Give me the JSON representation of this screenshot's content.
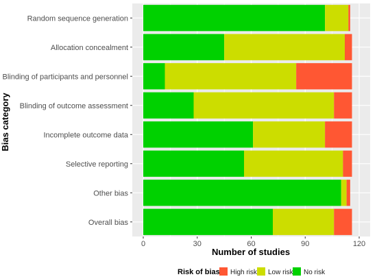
{
  "chart_data": {
    "type": "bar",
    "orientation": "horizontal",
    "stacked": true,
    "categories": [
      "Random sequence generation",
      "Allocation concealment",
      "Blinding of participants and personnel",
      "Blinding of outcome assessment",
      "Incomplete outcome data",
      "Selective reporting",
      "Other bias",
      "Overall bias"
    ],
    "series": [
      {
        "name": "No risk",
        "color": "#00D100",
        "values": [
          101,
          45,
          12,
          28,
          61,
          56,
          110,
          72
        ]
      },
      {
        "name": "Low risk",
        "color": "#CCDD00",
        "values": [
          13,
          67,
          73,
          78,
          40,
          55,
          3,
          34
        ]
      },
      {
        "name": "High risk",
        "color": "#FF5733",
        "values": [
          1,
          4,
          31,
          10,
          15,
          5,
          2,
          10
        ]
      }
    ],
    "xlabel": "Number of studies",
    "ylabel": "Bias category",
    "xlim": [
      0,
      120
    ],
    "xticks": [
      "0",
      "30",
      "60",
      "90",
      "120"
    ],
    "grid": true,
    "legend": {
      "title": "Risk of bias",
      "position": "bottom",
      "entries": [
        "High risk",
        "Low risk",
        "No risk"
      ]
    }
  },
  "colors": {
    "no_risk": "#00D100",
    "low_risk": "#CCDD00",
    "high_risk": "#FF5733",
    "panel_background": "#EBEBEB"
  }
}
